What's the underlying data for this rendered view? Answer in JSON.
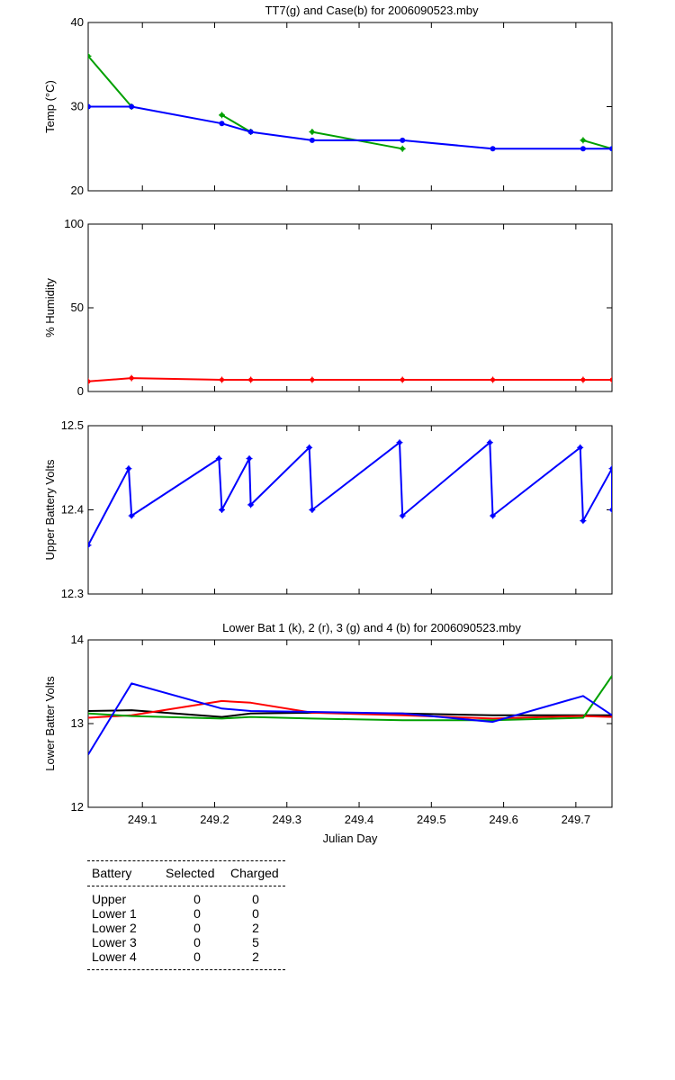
{
  "chart_data": [
    {
      "type": "line",
      "title": "TT7(g) and Case(b) for 2006090523.mby",
      "xlabel": "",
      "ylabel": "Temp  (°C)",
      "xlim": [
        249.025,
        249.75
      ],
      "ylim": [
        20,
        40
      ],
      "yticks": [
        20,
        30,
        40
      ],
      "xticks": [
        249.1,
        249.2,
        249.3,
        249.4,
        249.5,
        249.6,
        249.7
      ],
      "show_xtick_labels": false,
      "series": [
        {
          "color": "#00a000",
          "marker": "*",
          "segments": [
            {
              "x": [
                249.025,
                249.085
              ],
              "y": [
                36,
                30
              ]
            },
            {
              "x": [
                249.21,
                249.25
              ],
              "y": [
                29,
                27
              ]
            },
            {
              "x": [
                249.335,
                249.46
              ],
              "y": [
                27,
                25
              ]
            },
            {
              "x": [
                249.71,
                249.75
              ],
              "y": [
                26,
                25
              ]
            }
          ]
        },
        {
          "color": "#0000ff",
          "marker": "o",
          "segments": [
            {
              "x": [
                249.025,
                249.085,
                249.21,
                249.25,
                249.335,
                249.46,
                249.585,
                249.71,
                249.75
              ],
              "y": [
                30,
                30,
                28,
                27,
                26,
                26,
                25,
                25,
                25
              ]
            }
          ]
        }
      ]
    },
    {
      "type": "line",
      "title": "",
      "xlabel": "",
      "ylabel": "% Humidity",
      "xlim": [
        249.025,
        249.75
      ],
      "ylim": [
        0,
        100
      ],
      "yticks": [
        0,
        50,
        100
      ],
      "xticks": [
        249.1,
        249.2,
        249.3,
        249.4,
        249.5,
        249.6,
        249.7
      ],
      "show_xtick_labels": false,
      "series": [
        {
          "color": "#ff0000",
          "marker": "*",
          "segments": [
            {
              "x": [
                249.025,
                249.085,
                249.21,
                249.25,
                249.335,
                249.46,
                249.585,
                249.71,
                249.75
              ],
              "y": [
                6,
                8,
                7,
                7,
                7,
                7,
                7,
                7,
                7
              ]
            }
          ]
        }
      ]
    },
    {
      "type": "line",
      "title": "",
      "xlabel": "",
      "ylabel": "Upper Battery Volts",
      "xlim": [
        249.025,
        249.75
      ],
      "ylim": [
        12.3,
        12.5
      ],
      "yticks": [
        12.3,
        12.4,
        12.5
      ],
      "xticks": [
        249.1,
        249.2,
        249.3,
        249.4,
        249.5,
        249.6,
        249.7
      ],
      "show_xtick_labels": false,
      "series": [
        {
          "color": "#0000ff",
          "marker": "*",
          "segments": [
            {
              "x": [
                249.025,
                249.081,
                249.085,
                249.206,
                249.21,
                249.248,
                249.25,
                249.331,
                249.335,
                249.456,
                249.46,
                249.581,
                249.585,
                249.706,
                249.71,
                249.75,
                249.75
              ],
              "y": [
                12.358,
                12.449,
                12.393,
                12.461,
                12.4,
                12.461,
                12.406,
                12.474,
                12.4,
                12.48,
                12.393,
                12.48,
                12.393,
                12.474,
                12.387,
                12.449,
                12.4
              ]
            }
          ]
        }
      ]
    },
    {
      "type": "line",
      "title": "Lower Bat 1 (k), 2 (r), 3 (g) and 4 (b) for 2006090523.mby",
      "xlabel": "Julian Day",
      "ylabel": "Lower Batter Volts",
      "xlim": [
        249.025,
        249.75
      ],
      "ylim": [
        12,
        14
      ],
      "yticks": [
        12,
        13,
        14
      ],
      "xticks": [
        249.1,
        249.2,
        249.3,
        249.4,
        249.5,
        249.6,
        249.7
      ],
      "show_xtick_labels": true,
      "series": [
        {
          "color": "#000000",
          "marker": "",
          "segments": [
            {
              "x": [
                249.025,
                249.085,
                249.21,
                249.25,
                249.335,
                249.46,
                249.585,
                249.71,
                249.75
              ],
              "y": [
                13.15,
                13.16,
                13.08,
                13.12,
                13.13,
                13.12,
                13.1,
                13.1,
                13.1
              ]
            }
          ]
        },
        {
          "color": "#ff0000",
          "marker": "",
          "segments": [
            {
              "x": [
                249.025,
                249.085,
                249.21,
                249.25,
                249.335,
                249.46,
                249.585,
                249.71,
                249.75
              ],
              "y": [
                13.07,
                13.1,
                13.27,
                13.25,
                13.13,
                13.1,
                13.06,
                13.09,
                13.08
              ]
            }
          ]
        },
        {
          "color": "#00a000",
          "marker": "",
          "segments": [
            {
              "x": [
                249.025,
                249.085,
                249.21,
                249.25,
                249.335,
                249.46,
                249.585,
                249.71,
                249.75
              ],
              "y": [
                13.12,
                13.09,
                13.06,
                13.08,
                13.06,
                13.04,
                13.04,
                13.07,
                13.57
              ]
            }
          ]
        },
        {
          "color": "#0000ff",
          "marker": "",
          "segments": [
            {
              "x": [
                249.025,
                249.085,
                249.21,
                249.25,
                249.335,
                249.46,
                249.585,
                249.71,
                249.75
              ],
              "y": [
                12.63,
                13.48,
                13.18,
                13.15,
                13.14,
                13.12,
                13.02,
                13.33,
                13.1
              ]
            }
          ]
        }
      ]
    }
  ],
  "battery_table": {
    "headers": [
      "Battery",
      "Selected",
      "Charged"
    ],
    "rows": [
      [
        "Upper",
        "0",
        "0"
      ],
      [
        "Lower 1",
        "0",
        "0"
      ],
      [
        "Lower 2",
        "0",
        "2"
      ],
      [
        "Lower 3",
        "0",
        "5"
      ],
      [
        "Lower 4",
        "0",
        "2"
      ]
    ]
  }
}
